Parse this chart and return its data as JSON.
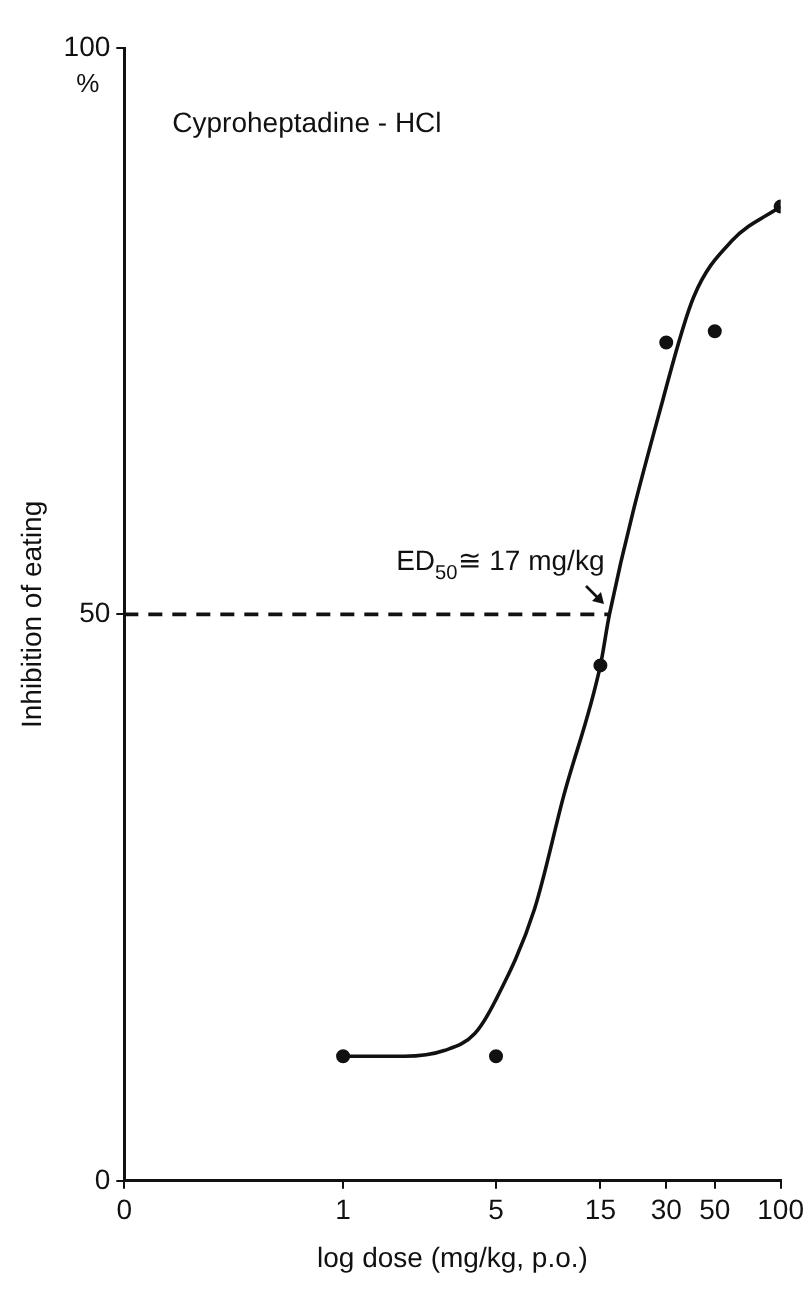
{
  "chart_data": {
    "type": "scatter",
    "title": "Cyproheptadine - HCl",
    "xlabel": "log dose (mg/kg, p.o.)",
    "ylabel": "Inhibition of eating",
    "log": "x",
    "xlim": [
      0.1,
      100
    ],
    "xticks": [
      {
        "value": 0.1,
        "label": "0"
      },
      1,
      5,
      15,
      30,
      50,
      100
    ],
    "ylim": [
      0,
      100
    ],
    "yticks": [
      0,
      50,
      100
    ],
    "grid": false,
    "legend": false,
    "marker": "circle",
    "annotations": [
      "%",
      {
        "text": "ED$_{50}$≅ 17 mg/kg",
        "x": 17,
        "y": 50
      }
    ],
    "series": [
      {
        "type": "scatter",
        "color": "#111111",
        "x": [
          1,
          5,
          15,
          30,
          50,
          100
        ],
        "values": [
          11,
          11,
          45.5,
          74,
          75,
          86
        ]
      },
      {
        "type": "line",
        "color": "#111111",
        "marker": "none",
        "line_style": "solid",
        "x": [
          1,
          1.9,
          2.9,
          4,
          5,
          7.5,
          10.2,
          15,
          16.5,
          29,
          40,
          60,
          100
        ],
        "values": [
          11,
          11,
          11.5,
          13,
          16,
          24,
          34,
          45.5,
          50,
          69,
          78,
          83,
          86
        ]
      },
      {
        "type": "line",
        "color": "#111111",
        "marker": "none",
        "line_style": "dashed",
        "x": [
          0.1,
          16.5
        ],
        "values": [
          50,
          50
        ]
      }
    ]
  }
}
